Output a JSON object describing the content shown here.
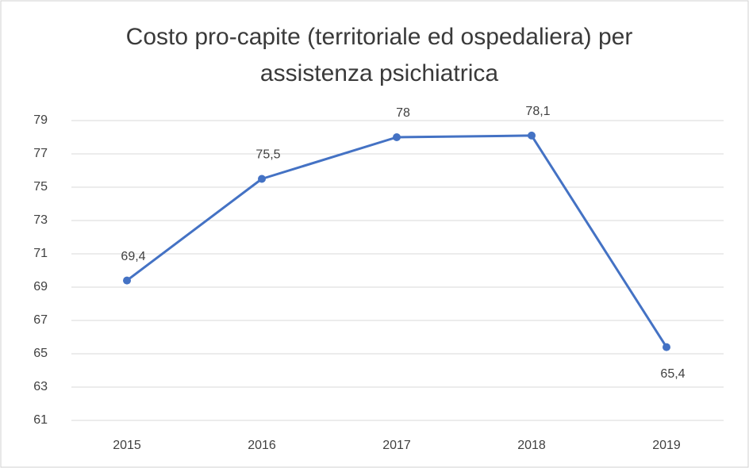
{
  "chart_data": {
    "type": "line",
    "title": [
      "Costo pro-capite (territoriale ed ospedaliera) per",
      "assistenza psichiatrica"
    ],
    "categories": [
      "2015",
      "2016",
      "2017",
      "2018",
      "2019"
    ],
    "series": [
      {
        "name": "Costo pro-capite",
        "color": "#4472c4",
        "values": [
          69.4,
          75.5,
          78,
          78.1,
          65.4
        ],
        "value_labels": [
          "69,4",
          "75,5",
          "78",
          "78,1",
          "65,4"
        ]
      }
    ],
    "ylim": [
      61,
      79
    ],
    "yticks": [
      61,
      63,
      65,
      67,
      69,
      71,
      73,
      75,
      77,
      79
    ],
    "grid": true
  }
}
